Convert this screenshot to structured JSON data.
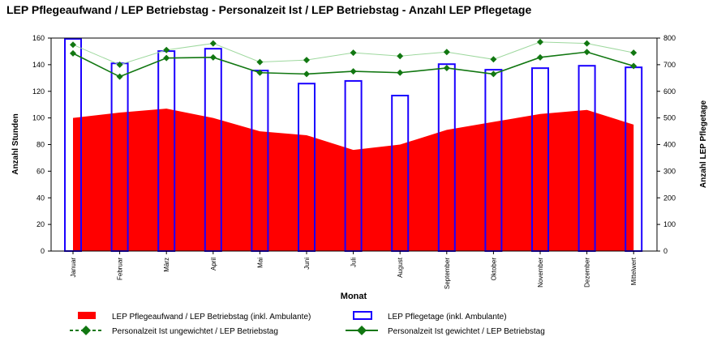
{
  "chart_data": {
    "type": "bar",
    "title": "LEP Pflegeaufwand / LEP Betriebstag - Personalzeit Ist / LEP Betriebstag - Anzahl LEP Pflegetage",
    "xlabel": "Monat",
    "ylabel": "Anzahl Stunden",
    "y2label": "Anzahl LEP Pflegetage",
    "ylim": [
      0,
      160
    ],
    "y2lim": [
      0,
      800
    ],
    "yticks": [
      0,
      20,
      40,
      60,
      80,
      100,
      120,
      140,
      160
    ],
    "y2ticks": [
      0,
      100,
      200,
      300,
      400,
      500,
      600,
      700,
      800
    ],
    "categories": [
      "Januar",
      "Februar",
      "März",
      "April",
      "Mai",
      "Juni",
      "Juli",
      "August",
      "September",
      "Oktober",
      "November",
      "Dezember",
      "Mittelwert"
    ],
    "series": [
      {
        "name": "LEP Pflegeaufwand / LEP Betriebstag (inkl. Ambulante)",
        "type": "area",
        "axis": "left",
        "color": "#ff0000",
        "values": [
          100,
          104,
          107,
          100,
          90,
          87,
          76,
          80,
          91,
          97,
          103,
          106,
          95
        ]
      },
      {
        "name": "LEP Pflegetage (inkl. Ambulante)",
        "type": "bar",
        "axis": "right",
        "color": "#1a00ff",
        "values": [
          797,
          705,
          751,
          760,
          678,
          629,
          639,
          584,
          702,
          681,
          687,
          696,
          690
        ]
      },
      {
        "name": "Personalzeit Ist ungewichtet / LEP Betriebstag",
        "type": "line",
        "axis": "left",
        "color": "#9ed89e",
        "values": [
          155,
          140,
          151,
          156,
          142,
          143.5,
          149,
          146.5,
          149.5,
          144,
          157,
          156,
          149
        ]
      },
      {
        "name": "Personalzeit Ist gewichtet / LEP Betriebstag",
        "type": "line",
        "axis": "left",
        "color": "#117711",
        "values": [
          148.5,
          131,
          145,
          145.5,
          134,
          133,
          135,
          134,
          137.5,
          133,
          145.5,
          149.5,
          139
        ]
      }
    ],
    "legend": "bottom"
  }
}
